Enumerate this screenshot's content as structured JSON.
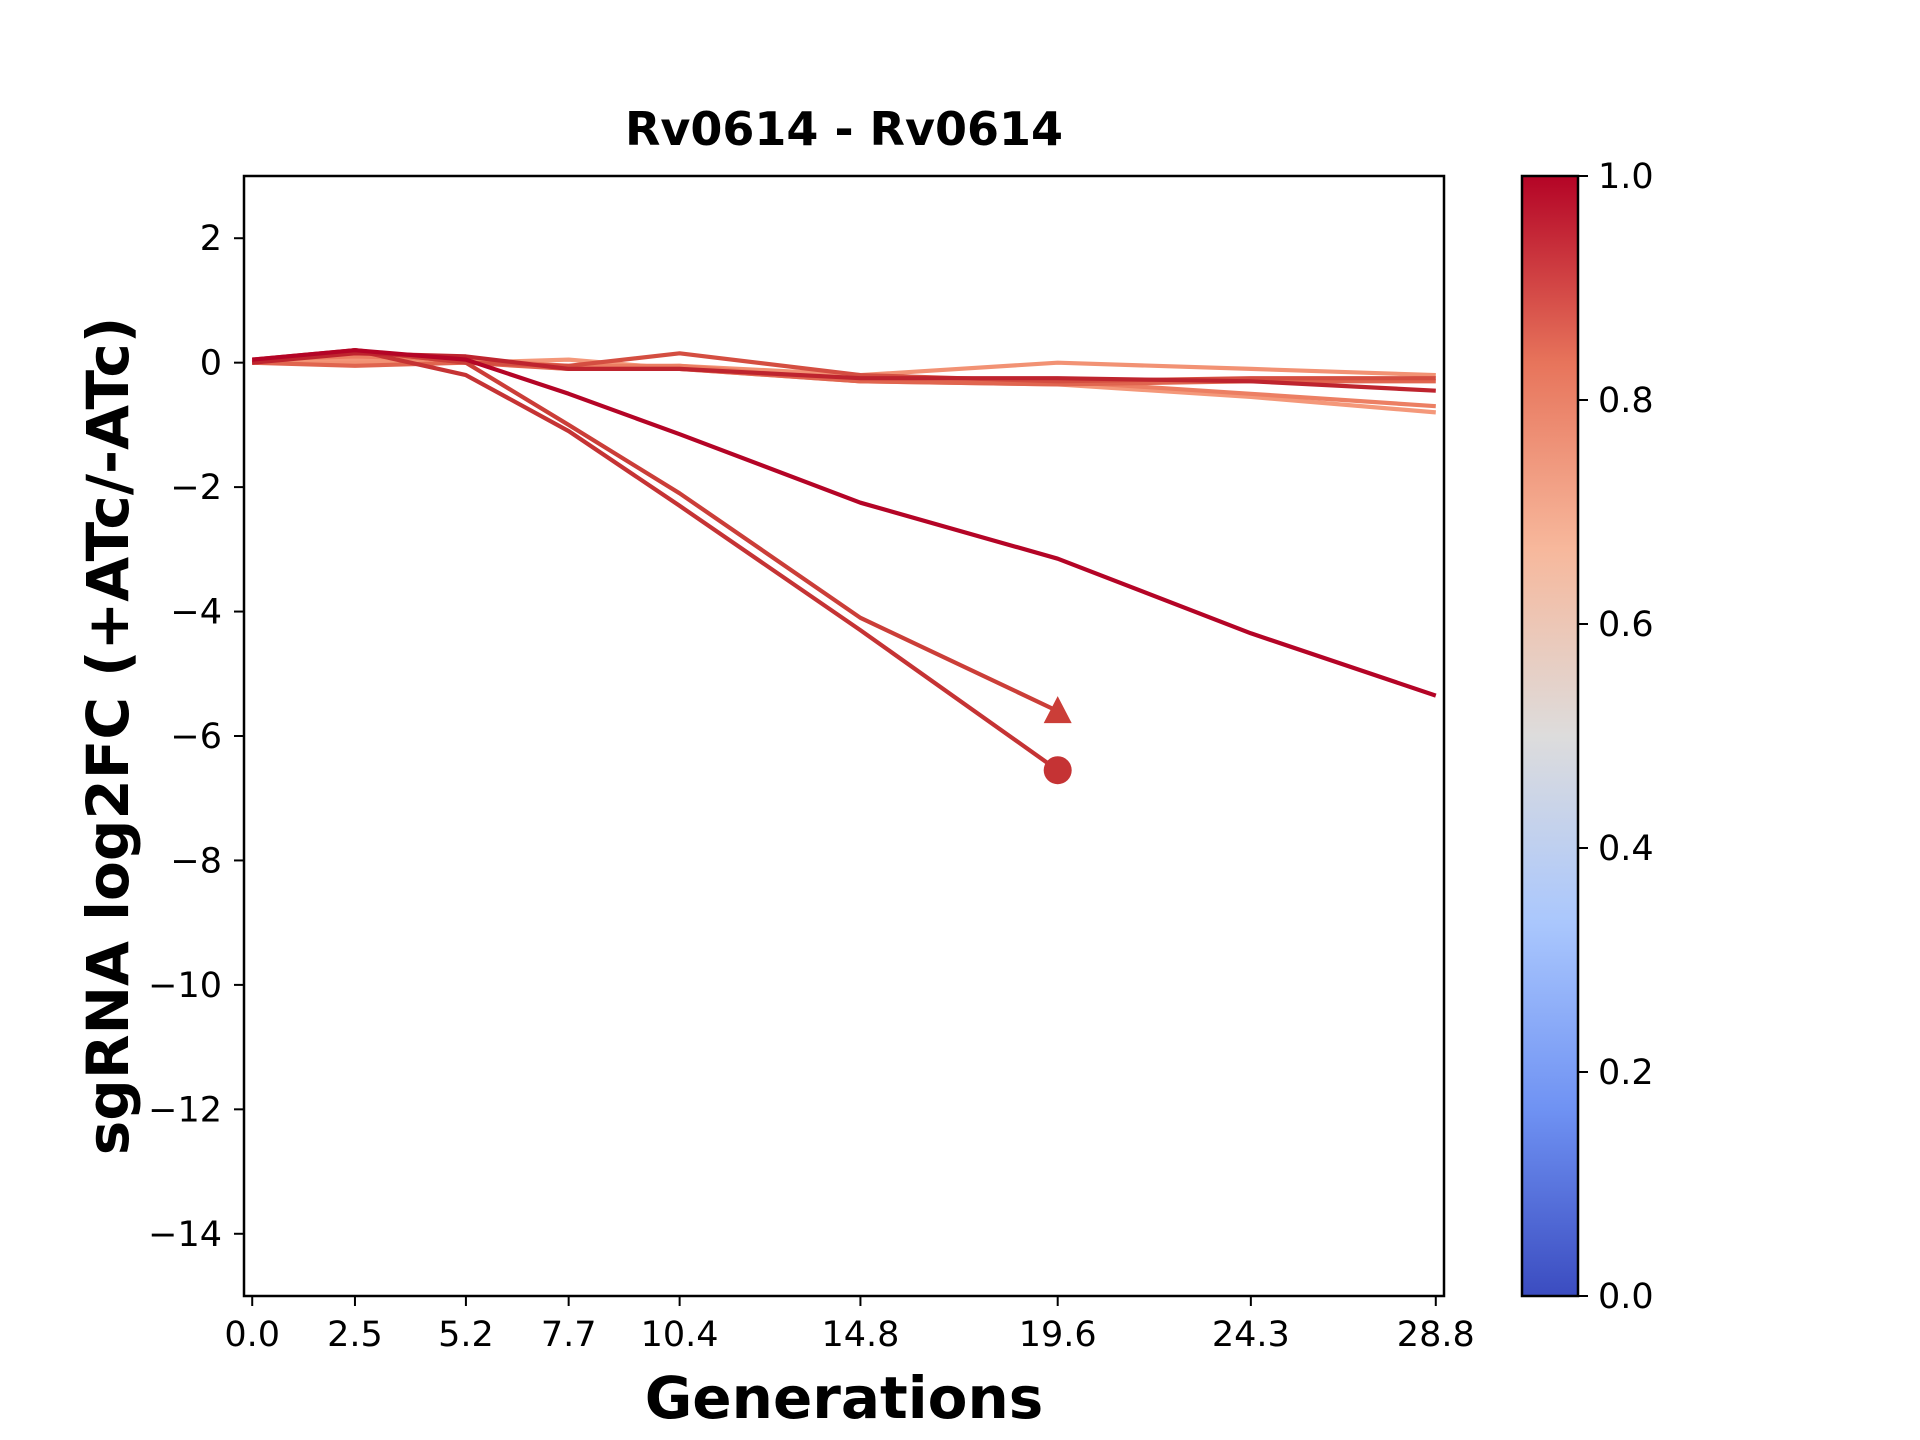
{
  "chart_data": {
    "type": "line",
    "title": "Rv0614 - Rv0614",
    "xlabel": "Generations",
    "ylabel": "sgRNA log2FC (+ATc/-ATc)",
    "xlim": [
      -0.2,
      29.0
    ],
    "ylim": [
      -15,
      3
    ],
    "x_ticks": [
      0.0,
      2.5,
      5.2,
      7.7,
      10.4,
      14.8,
      19.6,
      24.3,
      28.8
    ],
    "x_tick_labels": [
      "0.0",
      "2.5",
      "5.2",
      "7.7",
      "10.4",
      "14.8",
      "19.6",
      "24.3",
      "28.8"
    ],
    "y_ticks": [
      2,
      0,
      -2,
      -4,
      -6,
      -8,
      -10,
      -12,
      -14
    ],
    "y_tick_labels": [
      "2",
      "0",
      "−2",
      "−4",
      "−6",
      "−8",
      "−10",
      "−12",
      "−14"
    ],
    "grid": false,
    "colorbar": {
      "colormap": "coolwarm",
      "range": [
        0.0,
        1.0
      ],
      "ticks": [
        0.0,
        0.2,
        0.4,
        0.6,
        0.8,
        1.0
      ],
      "tick_labels": [
        "0.0",
        "0.2",
        "0.4",
        "0.6",
        "0.8",
        "1.0"
      ],
      "stops": [
        "#3b4cc0",
        "#6f92f3",
        "#aac7fd",
        "#dddcdc",
        "#f7b89c",
        "#e7745b",
        "#b40426"
      ]
    },
    "series": [
      {
        "color": "#f4987a",
        "x": [
          0.0,
          2.5,
          5.2,
          7.7,
          10.4,
          14.8,
          19.6,
          24.3,
          28.8
        ],
        "y": [
          0.0,
          0.05,
          0.0,
          0.05,
          -0.1,
          -0.3,
          -0.35,
          -0.55,
          -0.8
        ],
        "marker": "none"
      },
      {
        "color": "#f29274",
        "x": [
          0.0,
          2.5,
          5.2,
          7.7,
          10.4,
          14.8,
          19.6,
          24.3,
          28.8
        ],
        "y": [
          0.0,
          0.0,
          0.02,
          -0.1,
          -0.05,
          -0.2,
          0.0,
          -0.1,
          -0.2
        ],
        "marker": "none"
      },
      {
        "color": "#ec7f63",
        "x": [
          0.0,
          2.5,
          5.2,
          7.7,
          10.4,
          14.8,
          19.6,
          24.3,
          28.8
        ],
        "y": [
          0.05,
          0.1,
          0.05,
          -0.05,
          -0.05,
          -0.3,
          -0.3,
          -0.5,
          -0.7
        ],
        "marker": "none"
      },
      {
        "color": "#e0654f",
        "x": [
          0.0,
          2.5,
          5.2,
          7.7,
          10.4,
          14.8,
          19.6,
          24.3,
          28.8
        ],
        "y": [
          0.0,
          -0.05,
          0.0,
          -0.1,
          -0.1,
          -0.3,
          -0.35,
          -0.3,
          -0.3
        ],
        "marker": "none"
      },
      {
        "color": "#d44e41",
        "x": [
          0.0,
          2.5,
          5.2,
          7.7,
          10.4,
          14.8,
          19.6,
          24.3,
          28.8
        ],
        "y": [
          0.0,
          0.2,
          0.0,
          -0.05,
          0.15,
          -0.2,
          -0.3,
          -0.25,
          -0.25
        ],
        "marker": "none"
      },
      {
        "color": "#cb3e38",
        "x": [
          0.0,
          2.5,
          5.2,
          7.7,
          10.4,
          14.8,
          19.6
        ],
        "y": [
          0.05,
          0.2,
          0.0,
          -1.0,
          -2.1,
          -4.1,
          -5.6
        ],
        "marker": "triangle"
      },
      {
        "color": "#c53334",
        "x": [
          0.0,
          2.5,
          5.2,
          7.7,
          10.4,
          14.8,
          19.6
        ],
        "y": [
          0.0,
          0.2,
          -0.2,
          -1.1,
          -2.3,
          -4.3,
          -6.55
        ],
        "marker": "circle"
      },
      {
        "color": "#be242e",
        "x": [
          0.0,
          2.5,
          5.2,
          7.7,
          10.4,
          14.8,
          19.6,
          24.3,
          28.8
        ],
        "y": [
          0.0,
          0.15,
          0.1,
          -0.1,
          -0.1,
          -0.25,
          -0.25,
          -0.3,
          -0.45
        ],
        "marker": "none"
      },
      {
        "color": "#b40426",
        "x": [
          0.0,
          2.5,
          5.2,
          7.7,
          10.4,
          14.8,
          19.6,
          24.3,
          28.8
        ],
        "y": [
          0.05,
          0.2,
          0.05,
          -0.5,
          -1.15,
          -2.25,
          -3.15,
          -4.35,
          -5.35
        ],
        "marker": "none"
      }
    ]
  }
}
